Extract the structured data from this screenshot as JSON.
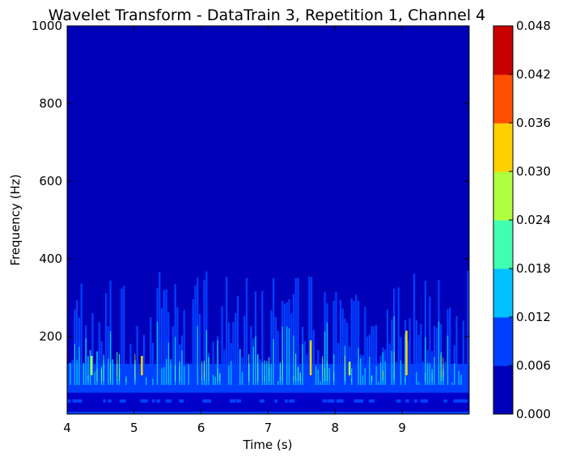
{
  "chart_data": {
    "type": "heatmap",
    "title": "Wavelet Transform - DataTrain 3, Repetition 1, Channel 4",
    "xlabel": "Time (s)",
    "ylabel": "Frequency (Hz)",
    "xlim": [
      4,
      10
    ],
    "ylim": [
      0,
      1000
    ],
    "x_ticks": [
      4,
      5,
      6,
      7,
      8,
      9
    ],
    "x_tick_labels": [
      "4",
      "5",
      "6",
      "7",
      "8",
      "9"
    ],
    "y_ticks": [
      200,
      400,
      600,
      800,
      1000
    ],
    "y_tick_labels": [
      "200",
      "400",
      "600",
      "800",
      "1000"
    ],
    "grid": false,
    "colorbar": {
      "range": [
        0,
        0.048
      ],
      "levels": [
        0.0,
        0.006,
        0.012,
        0.018,
        0.024,
        0.03,
        0.036,
        0.042,
        0.048
      ],
      "tick_labels": [
        "0.000",
        "0.006",
        "0.012",
        "0.018",
        "0.024",
        "0.030",
        "0.036",
        "0.042",
        "0.048"
      ],
      "colors": [
        "#0000b8",
        "#0040ff",
        "#00c0ff",
        "#40ffb0",
        "#b0ff40",
        "#ffd000",
        "#ff5000",
        "#c80000"
      ],
      "placement": "right"
    },
    "background_color": "#0000b8",
    "activity_band_hz": [
      0,
      370
    ]
  }
}
